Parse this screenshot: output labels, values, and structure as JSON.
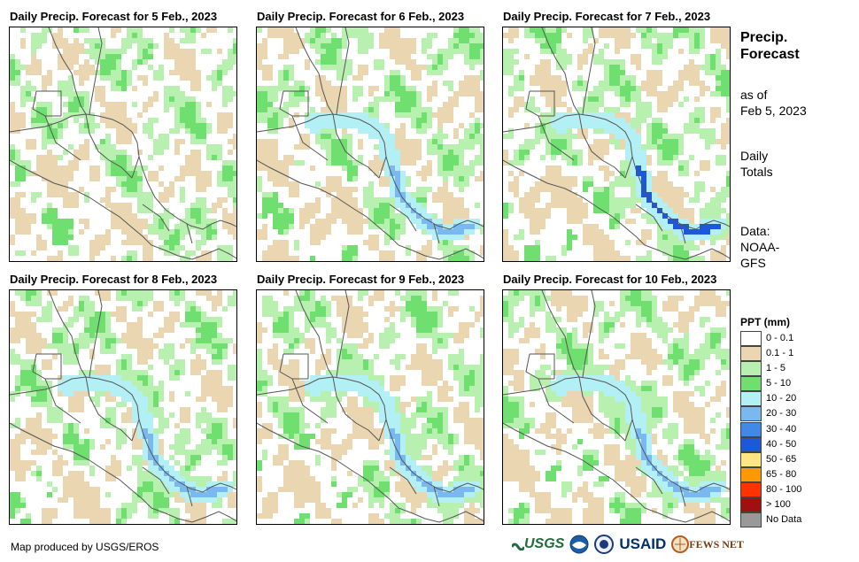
{
  "panels": [
    {
      "title": "Daily Precip. Forecast for 5 Feb., 2023",
      "seed": 5
    },
    {
      "title": "Daily Precip. Forecast for 6 Feb., 2023",
      "seed": 6
    },
    {
      "title": "Daily Precip. Forecast for 7 Feb., 2023",
      "seed": 7
    },
    {
      "title": "Daily Precip. Forecast for 8 Feb., 2023",
      "seed": 8
    },
    {
      "title": "Daily Precip. Forecast for 9 Feb., 2023",
      "seed": 9
    },
    {
      "title": "Daily Precip. Forecast for 10 Feb., 2023",
      "seed": 10
    }
  ],
  "side": {
    "title_line1": "Precip.",
    "title_line2": "Forecast",
    "asof_line1": "as of",
    "asof_line2": "Feb 5, 2023",
    "daily_line1": "Daily",
    "daily_line2": "Totals",
    "data_line1": "Data:",
    "data_line2": "NOAA-",
    "data_line3": "GFS"
  },
  "legend": {
    "title": "PPT (mm)",
    "items": [
      {
        "label": "0 - 0.1",
        "color": "#ffffff"
      },
      {
        "label": "0.1 - 1",
        "color": "#ead6b1"
      },
      {
        "label": "1 - 5",
        "color": "#b8f0b0"
      },
      {
        "label": "5 - 10",
        "color": "#6fe06f"
      },
      {
        "label": "10 - 20",
        "color": "#b3f0f5"
      },
      {
        "label": "20 - 30",
        "color": "#7ab8f0"
      },
      {
        "label": "30 - 40",
        "color": "#3f8ae8"
      },
      {
        "label": "40 - 50",
        "color": "#1c58d8"
      },
      {
        "label": "50 - 65",
        "color": "#ffe680"
      },
      {
        "label": "65 - 80",
        "color": "#ff9900"
      },
      {
        "label": "80 - 100",
        "color": "#ff3300"
      },
      {
        "label": "> 100",
        "color": "#a01010"
      },
      {
        "label": "No Data",
        "color": "#999999"
      }
    ]
  },
  "credit": "Map produced by USGS/EROS",
  "logos": {
    "usgs": "USGS",
    "usaid": "USAID",
    "fews": "FEWS NET"
  }
}
